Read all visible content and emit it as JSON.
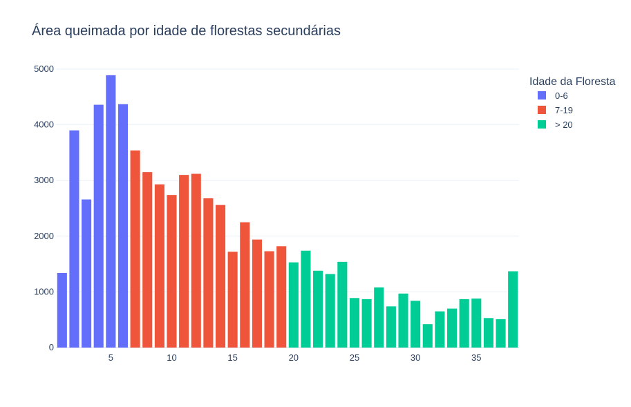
{
  "chart_data": {
    "type": "bar",
    "title": "Área queimada por idade de florestas secundárias",
    "xlabel": "",
    "ylabel": "",
    "xlim": [
      0.5,
      38.5
    ],
    "ylim": [
      0,
      5000
    ],
    "x_ticks": [
      5,
      10,
      15,
      20,
      25,
      30,
      35
    ],
    "y_ticks": [
      0,
      1000,
      2000,
      3000,
      4000,
      5000
    ],
    "grid": true,
    "legend_title": "Idade da Floresta",
    "legend_position": "top-right",
    "series": [
      {
        "name": "0-6",
        "color": "#636efa",
        "x": [
          1,
          2,
          3,
          4,
          5,
          6
        ],
        "values": [
          1340,
          3900,
          2660,
          4360,
          4890,
          4370
        ]
      },
      {
        "name": "7-19",
        "color": "#ef553b",
        "x": [
          7,
          8,
          9,
          10,
          11,
          12,
          13,
          14,
          15,
          16,
          17,
          18,
          19
        ],
        "values": [
          3540,
          3150,
          2930,
          2740,
          3100,
          3120,
          2680,
          2560,
          1720,
          2250,
          1940,
          1730,
          1820
        ]
      },
      {
        "name": "> 20",
        "color": "#00cc96",
        "x": [
          20,
          21,
          22,
          23,
          24,
          25,
          26,
          27,
          28,
          29,
          30,
          31,
          32,
          33,
          34,
          35,
          36,
          37,
          38
        ],
        "values": [
          1530,
          1740,
          1380,
          1320,
          1540,
          890,
          870,
          1080,
          740,
          970,
          840,
          420,
          650,
          700,
          870,
          880,
          530,
          510,
          1370
        ]
      }
    ]
  }
}
